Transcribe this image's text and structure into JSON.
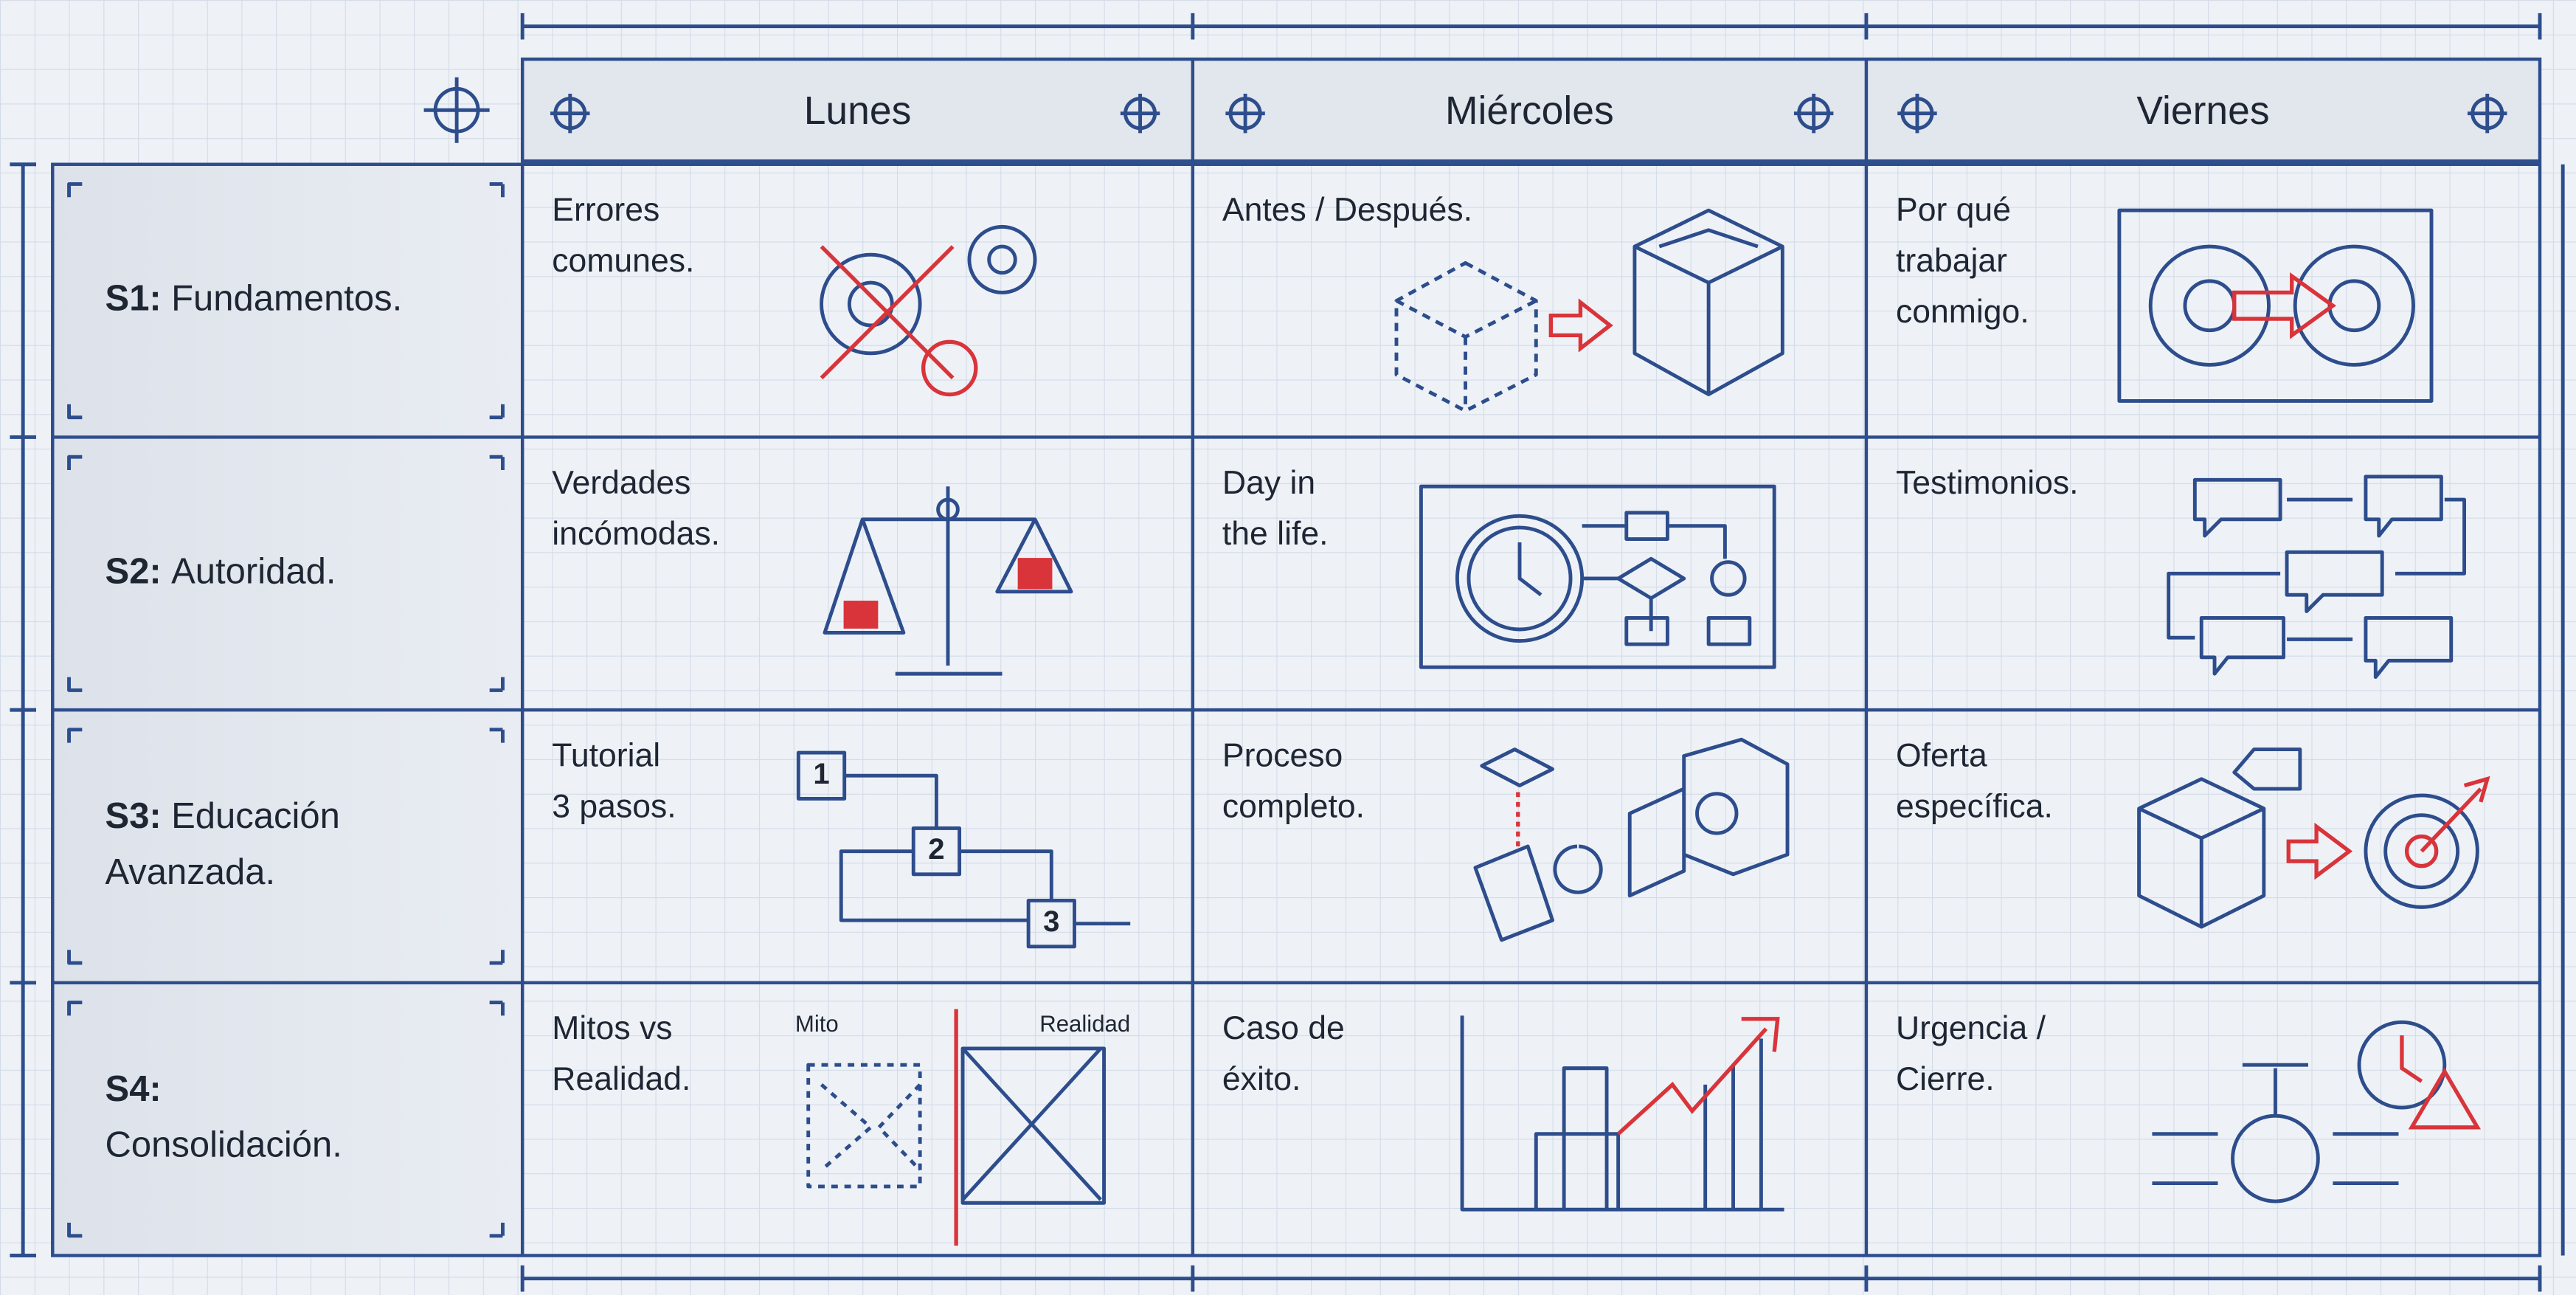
{
  "header": {
    "columns": [
      "Lunes",
      "Miércoles",
      "Viernes"
    ]
  },
  "rows": [
    {
      "prefix": "S1:",
      "label": [
        "Fundamentos."
      ],
      "cells": [
        [
          "Errores",
          "comunes."
        ],
        [
          "Antes / Después."
        ],
        [
          "Por qué",
          "trabajar",
          "conmigo."
        ]
      ]
    },
    {
      "prefix": "S2:",
      "label": [
        "Autoridad."
      ],
      "cells": [
        [
          "Verdades",
          "incómodas."
        ],
        [
          "Day in",
          "the life."
        ],
        [
          "Testimonios."
        ]
      ]
    },
    {
      "prefix": "S3:",
      "label": [
        "Educación",
        "Avanzada."
      ],
      "cells": [
        [
          "Tutorial",
          "3 pasos."
        ],
        [
          "Proceso",
          "completo."
        ],
        [
          "Oferta",
          "específica."
        ]
      ]
    },
    {
      "prefix": "S4:",
      "label": [
        "Consolidación."
      ],
      "cells": [
        [
          "Mitos vs",
          "Realidad."
        ],
        [
          "Caso de",
          "éxito."
        ],
        [
          "Urgencia /",
          "Cierre."
        ]
      ]
    }
  ],
  "icon_labels": {
    "myth": "Mito",
    "reality": "Realidad"
  },
  "step_labels": [
    "1",
    "2",
    "3"
  ]
}
